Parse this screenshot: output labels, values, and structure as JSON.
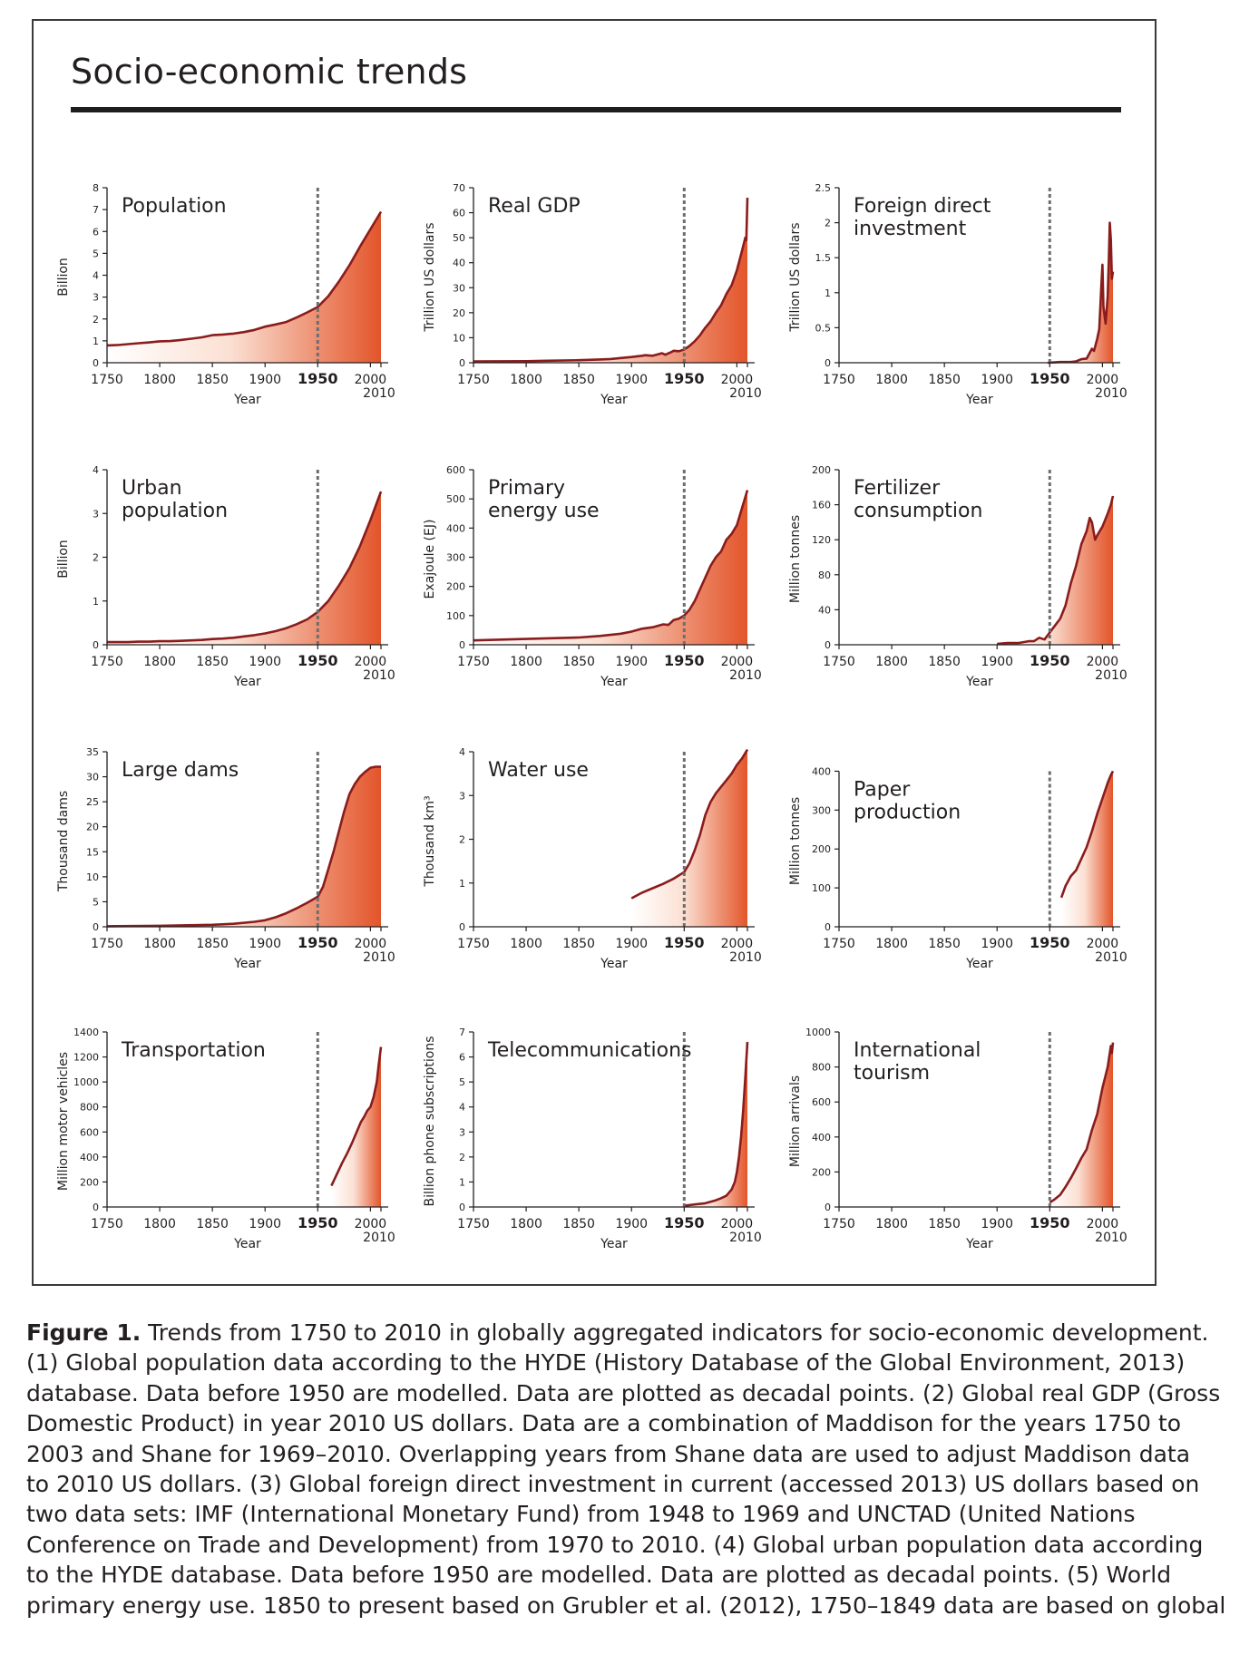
{
  "page_title": "Socio-economic trends",
  "x_axis_label": "Year",
  "chart_data": [
    {
      "type": "area",
      "title": "Population",
      "title_lines": [
        "Population"
      ],
      "ylabel": "Billion",
      "ylim": [
        0,
        8
      ],
      "yticks": [
        "0",
        "1",
        "2",
        "3",
        "4",
        "5",
        "6",
        "7",
        "8"
      ],
      "ytick_values": [
        0,
        1,
        2,
        3,
        4,
        5,
        6,
        7,
        8
      ],
      "xlim": [
        1750,
        2010
      ],
      "xticks": [
        "1750",
        "1800",
        "1850",
        "1900",
        "1950",
        "2000"
      ],
      "xtick_values": [
        1750,
        1800,
        1850,
        1900,
        1950,
        2000
      ],
      "x_end_label": "2010",
      "marker_year": 1950,
      "x": [
        1750,
        1760,
        1770,
        1780,
        1790,
        1800,
        1810,
        1820,
        1830,
        1840,
        1850,
        1860,
        1870,
        1880,
        1890,
        1900,
        1910,
        1920,
        1930,
        1940,
        1950,
        1960,
        1970,
        1980,
        1990,
        2000,
        2010
      ],
      "y": [
        0.79,
        0.81,
        0.85,
        0.89,
        0.93,
        0.98,
        0.99,
        1.04,
        1.1,
        1.16,
        1.26,
        1.29,
        1.33,
        1.4,
        1.5,
        1.65,
        1.75,
        1.86,
        2.07,
        2.3,
        2.55,
        3.04,
        3.7,
        4.45,
        5.3,
        6.1,
        6.9
      ]
    },
    {
      "type": "area",
      "title": "Real GDP",
      "title_lines": [
        "Real GDP"
      ],
      "ylabel": "Trillion US dollars",
      "ylim": [
        0,
        70
      ],
      "yticks": [
        "0",
        "10",
        "20",
        "30",
        "40",
        "50",
        "60",
        "70"
      ],
      "ytick_values": [
        0,
        10,
        20,
        30,
        40,
        50,
        60,
        70
      ],
      "xlim": [
        1750,
        2010
      ],
      "xticks": [
        "1750",
        "1800",
        "1850",
        "1900",
        "1950",
        "2000"
      ],
      "xtick_values": [
        1750,
        1800,
        1850,
        1900,
        1950,
        2000
      ],
      "x_end_label": "2010",
      "marker_year": 1950,
      "x": [
        1750,
        1800,
        1820,
        1850,
        1870,
        1880,
        1890,
        1900,
        1910,
        1913,
        1920,
        1929,
        1932,
        1938,
        1940,
        1945,
        1950,
        1955,
        1960,
        1965,
        1970,
        1975,
        1980,
        1985,
        1990,
        1995,
        2000,
        2005,
        2008,
        2009,
        2010
      ],
      "y": [
        0.5,
        0.6,
        0.8,
        1.0,
        1.3,
        1.5,
        1.9,
        2.3,
        2.8,
        3.0,
        2.8,
        3.8,
        3.2,
        4.3,
        4.8,
        4.6,
        5.3,
        6.7,
        8.6,
        11.0,
        14.0,
        16.5,
        20.0,
        23.0,
        27.5,
        31.0,
        37.0,
        45.0,
        50.0,
        49.0,
        66.0
      ]
    },
    {
      "type": "area",
      "title": "Foreign direct investment",
      "title_lines": [
        "Foreign direct",
        "investment"
      ],
      "ylabel": "Trillion US dollars",
      "ylim": [
        0,
        2.5
      ],
      "yticks": [
        "0",
        "0.5",
        "1",
        "1.5",
        "2",
        "2.5"
      ],
      "ytick_values": [
        0,
        0.5,
        1,
        1.5,
        2,
        2.5
      ],
      "xlim": [
        1750,
        2010
      ],
      "xticks": [
        "1750",
        "1800",
        "1850",
        "1900",
        "1950",
        "2000"
      ],
      "xtick_values": [
        1750,
        1800,
        1850,
        1900,
        1950,
        2000
      ],
      "x_end_label": "2010",
      "marker_year": 1950,
      "x": [
        1948,
        1960,
        1970,
        1975,
        1980,
        1985,
        1990,
        1992,
        1995,
        1997,
        1999,
        2000,
        2001,
        2003,
        2005,
        2006,
        2007,
        2008,
        2009,
        2010
      ],
      "y": [
        0.0,
        0.01,
        0.01,
        0.02,
        0.05,
        0.06,
        0.2,
        0.17,
        0.34,
        0.48,
        1.1,
        1.4,
        0.8,
        0.56,
        0.95,
        1.45,
        2.0,
        1.75,
        1.2,
        1.3
      ]
    },
    {
      "type": "area",
      "title": "Urban population",
      "title_lines": [
        "Urban",
        "population"
      ],
      "ylabel": "Billion",
      "ylim": [
        0,
        4
      ],
      "yticks": [
        "0",
        "1",
        "2",
        "3",
        "4"
      ],
      "ytick_values": [
        0,
        1,
        2,
        3,
        4
      ],
      "xlim": [
        1750,
        2010
      ],
      "xticks": [
        "1750",
        "1800",
        "1850",
        "1900",
        "1950",
        "2000"
      ],
      "xtick_values": [
        1750,
        1800,
        1850,
        1900,
        1950,
        2000
      ],
      "x_end_label": "2010",
      "marker_year": 1950,
      "x": [
        1750,
        1760,
        1770,
        1780,
        1790,
        1800,
        1810,
        1820,
        1830,
        1840,
        1850,
        1860,
        1870,
        1880,
        1890,
        1900,
        1910,
        1920,
        1930,
        1940,
        1950,
        1960,
        1970,
        1980,
        1990,
        2000,
        2010
      ],
      "y": [
        0.06,
        0.06,
        0.06,
        0.07,
        0.07,
        0.08,
        0.08,
        0.09,
        0.1,
        0.11,
        0.13,
        0.14,
        0.16,
        0.19,
        0.22,
        0.26,
        0.31,
        0.38,
        0.47,
        0.58,
        0.75,
        1.0,
        1.35,
        1.75,
        2.25,
        2.85,
        3.5
      ]
    },
    {
      "type": "area",
      "title": "Primary energy use",
      "title_lines": [
        "Primary",
        "energy use"
      ],
      "ylabel": "Exajoule (EJ)",
      "ylim": [
        0,
        600
      ],
      "yticks": [
        "0",
        "100",
        "200",
        "300",
        "400",
        "500",
        "600"
      ],
      "ytick_values": [
        0,
        100,
        200,
        300,
        400,
        500,
        600
      ],
      "xlim": [
        1750,
        2010
      ],
      "xticks": [
        "1750",
        "1800",
        "1850",
        "1900",
        "1950",
        "2000"
      ],
      "xtick_values": [
        1750,
        1800,
        1850,
        1900,
        1950,
        2000
      ],
      "x_end_label": "2010",
      "marker_year": 1950,
      "x": [
        1750,
        1800,
        1850,
        1870,
        1890,
        1900,
        1910,
        1920,
        1930,
        1935,
        1940,
        1945,
        1950,
        1955,
        1960,
        1965,
        1970,
        1975,
        1980,
        1985,
        1990,
        1995,
        2000,
        2005,
        2010
      ],
      "y": [
        15,
        20,
        25,
        30,
        38,
        45,
        55,
        60,
        70,
        68,
        85,
        90,
        100,
        120,
        150,
        190,
        230,
        270,
        300,
        320,
        360,
        380,
        410,
        470,
        530
      ]
    },
    {
      "type": "area",
      "title": "Fertilizer consumption",
      "title_lines": [
        "Fertilizer",
        "consumption"
      ],
      "ylabel": "Million tonnes",
      "ylim": [
        0,
        200
      ],
      "yticks": [
        "0",
        "40",
        "80",
        "120",
        "160",
        "200"
      ],
      "ytick_values": [
        0,
        40,
        80,
        120,
        160,
        200
      ],
      "xlim": [
        1750,
        2010
      ],
      "xticks": [
        "1750",
        "1800",
        "1850",
        "1900",
        "1950",
        "2000"
      ],
      "xtick_values": [
        1750,
        1800,
        1850,
        1900,
        1950,
        2000
      ],
      "x_end_label": "2010",
      "marker_year": 1950,
      "x": [
        1900,
        1910,
        1920,
        1930,
        1935,
        1940,
        1945,
        1950,
        1955,
        1960,
        1965,
        1970,
        1975,
        1980,
        1985,
        1988,
        1990,
        1993,
        1995,
        2000,
        2005,
        2008,
        2010
      ],
      "y": [
        1,
        2,
        2,
        4,
        4,
        8,
        6,
        14,
        22,
        30,
        45,
        70,
        90,
        115,
        130,
        145,
        140,
        120,
        125,
        135,
        150,
        160,
        170
      ]
    },
    {
      "type": "area",
      "title": "Large dams",
      "title_lines": [
        "Large dams"
      ],
      "ylabel": "Thousand dams",
      "ylim": [
        0,
        35
      ],
      "yticks": [
        "0",
        "5",
        "10",
        "15",
        "20",
        "25",
        "30",
        "35"
      ],
      "ytick_values": [
        0,
        5,
        10,
        15,
        20,
        25,
        30,
        35
      ],
      "xlim": [
        1750,
        2010
      ],
      "xticks": [
        "1750",
        "1800",
        "1850",
        "1900",
        "1950",
        "2000"
      ],
      "xtick_values": [
        1750,
        1800,
        1850,
        1900,
        1950,
        2000
      ],
      "x_end_label": "2010",
      "marker_year": 1950,
      "x": [
        1750,
        1800,
        1850,
        1870,
        1890,
        1900,
        1910,
        1920,
        1930,
        1940,
        1950,
        1955,
        1960,
        1965,
        1970,
        1975,
        1980,
        1985,
        1990,
        1995,
        2000,
        2005,
        2010
      ],
      "y": [
        0.1,
        0.2,
        0.4,
        0.6,
        1.0,
        1.3,
        1.9,
        2.7,
        3.7,
        4.8,
        6.0,
        8.0,
        11.5,
        15.0,
        19.0,
        23.0,
        26.5,
        28.5,
        30.0,
        31.0,
        31.8,
        32.0,
        32.0
      ]
    },
    {
      "type": "area",
      "title": "Water use",
      "title_lines": [
        "Water use"
      ],
      "ylabel": "Thousand km³",
      "ylim": [
        0,
        4
      ],
      "yticks": [
        "0",
        "1",
        "2",
        "3",
        "4"
      ],
      "ytick_values": [
        0,
        1,
        2,
        3,
        4
      ],
      "xlim": [
        1750,
        2010
      ],
      "xticks": [
        "1750",
        "1800",
        "1850",
        "1900",
        "1950",
        "2000"
      ],
      "xtick_values": [
        1750,
        1800,
        1850,
        1900,
        1950,
        2000
      ],
      "x_end_label": "2010",
      "marker_year": 1950,
      "x": [
        1900,
        1910,
        1920,
        1930,
        1940,
        1950,
        1955,
        1960,
        1965,
        1970,
        1975,
        1980,
        1985,
        1990,
        1995,
        2000,
        2005,
        2010
      ],
      "y": [
        0.65,
        0.78,
        0.88,
        0.98,
        1.1,
        1.25,
        1.45,
        1.75,
        2.1,
        2.55,
        2.85,
        3.05,
        3.2,
        3.35,
        3.5,
        3.7,
        3.85,
        4.05
      ]
    },
    {
      "type": "area",
      "title": "Paper production",
      "title_lines": [
        "Paper",
        "production"
      ],
      "ylabel": "Million tonnes",
      "ylim": [
        0,
        450
      ],
      "yticks": [
        "0",
        "100",
        "200",
        "300",
        "400"
      ],
      "ytick_values": [
        0,
        100,
        200,
        300,
        400
      ],
      "xlim": [
        1750,
        2010
      ],
      "xticks": [
        "1750",
        "1800",
        "1850",
        "1900",
        "1950",
        "2000"
      ],
      "xtick_values": [
        1750,
        1800,
        1850,
        1900,
        1950,
        2000
      ],
      "x_end_label": "2010",
      "marker_year": 1950,
      "x": [
        1961,
        1965,
        1970,
        1975,
        1980,
        1985,
        1990,
        1995,
        2000,
        2005,
        2008,
        2010
      ],
      "y": [
        75,
        105,
        130,
        145,
        175,
        205,
        245,
        290,
        330,
        370,
        390,
        400
      ]
    },
    {
      "type": "area",
      "title": "Transportation",
      "title_lines": [
        "Transportation"
      ],
      "ylabel": "Million motor vehicles",
      "ylim": [
        0,
        1400
      ],
      "yticks": [
        "0",
        "200",
        "400",
        "600",
        "800",
        "1000",
        "1200",
        "1400"
      ],
      "ytick_values": [
        0,
        200,
        400,
        600,
        800,
        1000,
        1200,
        1400
      ],
      "xlim": [
        1750,
        2010
      ],
      "xticks": [
        "1750",
        "1800",
        "1850",
        "1900",
        "1950",
        "2000"
      ],
      "xtick_values": [
        1750,
        1800,
        1850,
        1900,
        1950,
        2000
      ],
      "x_end_label": "2010",
      "marker_year": 1950,
      "x": [
        1963,
        1968,
        1973,
        1978,
        1983,
        1988,
        1991,
        1994,
        1997,
        2000,
        2003,
        2006,
        2008,
        2010
      ],
      "y": [
        170,
        260,
        350,
        430,
        520,
        620,
        680,
        720,
        770,
        800,
        880,
        1000,
        1150,
        1280
      ]
    },
    {
      "type": "area",
      "title": "Telecommunications",
      "title_lines": [
        "Telecommunications"
      ],
      "ylabel": "Billion phone subscriptions",
      "ylim": [
        0,
        7
      ],
      "yticks": [
        "0",
        "1",
        "2",
        "3",
        "4",
        "5",
        "6",
        "7"
      ],
      "ytick_values": [
        0,
        1,
        2,
        3,
        4,
        5,
        6,
        7
      ],
      "xlim": [
        1750,
        2010
      ],
      "xticks": [
        "1750",
        "1800",
        "1850",
        "1900",
        "1950",
        "2000"
      ],
      "xtick_values": [
        1750,
        1800,
        1850,
        1900,
        1950,
        2000
      ],
      "x_end_label": "2010",
      "marker_year": 1950,
      "x": [
        1950,
        1960,
        1970,
        1980,
        1985,
        1990,
        1995,
        1998,
        2000,
        2002,
        2004,
        2006,
        2008,
        2010
      ],
      "y": [
        0.05,
        0.1,
        0.15,
        0.27,
        0.35,
        0.45,
        0.7,
        1.0,
        1.4,
        2.0,
        2.8,
        3.9,
        5.2,
        6.6
      ]
    },
    {
      "type": "area",
      "title": "International tourism",
      "title_lines": [
        "International",
        "tourism"
      ],
      "ylabel": "Million arrivals",
      "ylim": [
        0,
        1000
      ],
      "yticks": [
        "0",
        "200",
        "400",
        "600",
        "800",
        "1000"
      ],
      "ytick_values": [
        0,
        200,
        400,
        600,
        800,
        1000
      ],
      "xlim": [
        1750,
        2010
      ],
      "xticks": [
        "1750",
        "1800",
        "1850",
        "1900",
        "1950",
        "2000"
      ],
      "xtick_values": [
        1750,
        1800,
        1850,
        1900,
        1950,
        2000
      ],
      "x_end_label": "2010",
      "marker_year": 1950,
      "x": [
        1950,
        1955,
        1960,
        1965,
        1970,
        1975,
        1980,
        1985,
        1990,
        1995,
        2000,
        2005,
        2008,
        2009,
        2010
      ],
      "y": [
        25,
        45,
        70,
        115,
        165,
        220,
        280,
        330,
        440,
        530,
        680,
        800,
        920,
        880,
        940
      ]
    }
  ],
  "caption": {
    "figure_label": "Figure 1.",
    "lines": [
      " Trends from 1750 to 2010 in globally aggregated indicators for socio-economic development.",
      "(1) Global population data according to the HYDE (History Database of the Global Environment, 2013)",
      "database. Data before 1950 are modelled. Data are plotted as decadal points. (2) Global real GDP (Gross",
      "Domestic Product) in year 2010 US dollars. Data are a combination of Maddison for the years 1750 to",
      "2003 and Shane for 1969–2010. Overlapping years from Shane data are used to adjust Maddison data",
      "to 2010 US dollars. (3) Global foreign direct investment in current (accessed 2013) US dollars based on",
      "two data sets: IMF (International Monetary Fund) from 1948 to 1969 and UNCTAD (United Nations",
      "Conference on Trade and Development) from 1970 to 2010. (4) Global urban population data according",
      "to the HYDE database. Data before 1950 are modelled. Data are plotted as decadal points. (5) World",
      "primary energy use. 1850 to present based on Grubler et al. (2012), 1750–1849 data are based on global"
    ]
  },
  "colors": {
    "line": "#8b1c1c",
    "fill_dark": "#e3552a",
    "fill_light": "#ffffff",
    "marker": "#6d6e71",
    "axis": "#231f20"
  }
}
